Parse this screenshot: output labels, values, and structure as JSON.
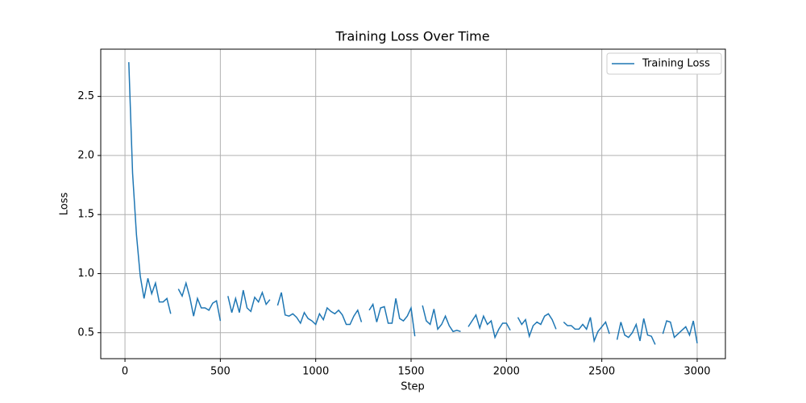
{
  "chart_data": {
    "type": "line",
    "title": "Training Loss Over Time",
    "xlabel": "Step",
    "ylabel": "Loss",
    "x": [
      20,
      40,
      60,
      80,
      100,
      120,
      140,
      160,
      180,
      200,
      220,
      240,
      260,
      280,
      300,
      320,
      340,
      360,
      380,
      400,
      420,
      440,
      460,
      480,
      500,
      520,
      540,
      560,
      580,
      600,
      620,
      640,
      660,
      680,
      700,
      720,
      740,
      760,
      780,
      800,
      820,
      840,
      860,
      880,
      900,
      920,
      940,
      960,
      980,
      1000,
      1020,
      1040,
      1060,
      1080,
      1100,
      1120,
      1140,
      1160,
      1180,
      1200,
      1220,
      1240,
      1260,
      1280,
      1300,
      1320,
      1340,
      1360,
      1380,
      1400,
      1420,
      1440,
      1460,
      1480,
      1500,
      1520,
      1540,
      1560,
      1580,
      1600,
      1620,
      1640,
      1660,
      1680,
      1700,
      1720,
      1740,
      1760,
      1780,
      1800,
      1820,
      1840,
      1860,
      1880,
      1900,
      1920,
      1940,
      1960,
      1980,
      2000,
      2020,
      2040,
      2060,
      2080,
      2100,
      2120,
      2140,
      2160,
      2180,
      2200,
      2220,
      2240,
      2260,
      2280,
      2300,
      2320,
      2340,
      2360,
      2380,
      2400,
      2420,
      2440,
      2460,
      2480,
      2500,
      2520,
      2540,
      2560,
      2580,
      2600,
      2620,
      2640,
      2660,
      2680,
      2700,
      2720,
      2740,
      2760,
      2780,
      2800,
      2820,
      2840,
      2860,
      2880,
      2900,
      2920,
      2940,
      2960,
      2980,
      3000
    ],
    "series": [
      {
        "name": "Training Loss",
        "color": "#1f77b4",
        "values": [
          2.79,
          1.85,
          1.33,
          0.98,
          0.79,
          0.96,
          0.83,
          0.92,
          0.76,
          0.76,
          0.79,
          0.66,
          null,
          0.87,
          0.81,
          0.92,
          0.8,
          0.64,
          0.79,
          0.71,
          0.71,
          0.69,
          0.75,
          0.77,
          0.6,
          null,
          0.81,
          0.67,
          0.79,
          0.67,
          0.86,
          0.71,
          0.68,
          0.8,
          0.76,
          0.84,
          0.74,
          0.78,
          null,
          0.73,
          0.84,
          0.65,
          0.64,
          0.66,
          0.63,
          0.58,
          0.67,
          0.62,
          0.6,
          0.57,
          0.66,
          0.61,
          0.71,
          0.68,
          0.66,
          0.69,
          0.65,
          0.57,
          0.57,
          0.64,
          0.69,
          0.59,
          null,
          0.69,
          0.74,
          0.59,
          0.71,
          0.72,
          0.58,
          0.58,
          0.79,
          0.62,
          0.6,
          0.64,
          0.71,
          0.47,
          null,
          0.73,
          0.6,
          0.57,
          0.7,
          0.53,
          0.57,
          0.64,
          0.56,
          0.51,
          0.52,
          0.51,
          null,
          0.55,
          0.6,
          0.65,
          0.54,
          0.64,
          0.57,
          0.6,
          0.46,
          0.53,
          0.58,
          0.58,
          0.52,
          null,
          0.63,
          0.57,
          0.61,
          0.47,
          0.56,
          0.59,
          0.57,
          0.64,
          0.66,
          0.61,
          0.53,
          null,
          0.59,
          0.56,
          0.56,
          0.53,
          0.53,
          0.57,
          0.53,
          0.63,
          0.43,
          0.51,
          0.55,
          0.59,
          0.49,
          null,
          0.44,
          0.59,
          0.48,
          0.46,
          0.5,
          0.57,
          0.43,
          0.62,
          0.48,
          0.47,
          0.4,
          null,
          0.49,
          0.6,
          0.59,
          0.46,
          0.49,
          0.52,
          0.55,
          0.48,
          0.6,
          0.41
        ]
      }
    ],
    "xlim": [
      -127,
      3148
    ],
    "ylim": [
      0.28,
      2.9
    ],
    "xticks": [
      0,
      500,
      1000,
      1500,
      2000,
      2500,
      3000
    ],
    "yticks": [
      0.5,
      {
        "value": 1,
        "label": "1.0"
      },
      1.5,
      {
        "value": 2,
        "label": "2.0"
      },
      2.5
    ],
    "grid": true,
    "legend": "upper right"
  }
}
